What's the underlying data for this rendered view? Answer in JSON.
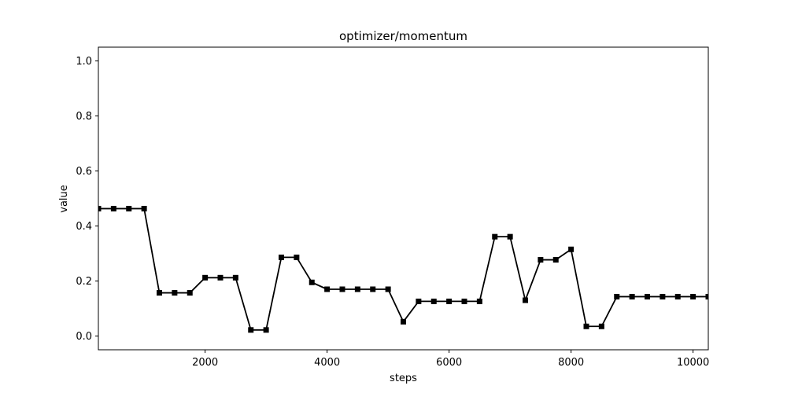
{
  "chart_data": {
    "type": "line",
    "title": "optimizer/momentum",
    "xlabel": "steps",
    "ylabel": "value",
    "xlim": [
      250,
      10250
    ],
    "ylim": [
      -0.05,
      1.05
    ],
    "xticks": [
      2000,
      4000,
      6000,
      8000,
      10000
    ],
    "xtick_labels": [
      "2000",
      "4000",
      "6000",
      "8000",
      "10000"
    ],
    "yticks": [
      0.0,
      0.2,
      0.4,
      0.6,
      0.8,
      1.0
    ],
    "ytick_labels": [
      "0.0",
      "0.2",
      "0.4",
      "0.6",
      "0.8",
      "1.0"
    ],
    "grid": false,
    "line_color": "#000000",
    "marker": "square",
    "series": [
      {
        "x": [
          250,
          500,
          750,
          1000,
          1250,
          1500,
          1750,
          2000,
          2250,
          2500,
          2750,
          3000,
          3250,
          3500,
          3750,
          4000,
          4250,
          4500,
          4750,
          5000,
          5250,
          5500,
          5750,
          6000,
          6250,
          6500,
          6750,
          7000,
          7250,
          7500,
          7750,
          8000,
          8250,
          8500,
          8750,
          9000,
          9250,
          9500,
          9750,
          10000,
          10250
        ],
        "values": [
          0.463,
          0.463,
          0.463,
          0.463,
          0.157,
          0.157,
          0.157,
          0.212,
          0.212,
          0.212,
          0.022,
          0.022,
          0.286,
          0.286,
          0.195,
          0.17,
          0.17,
          0.17,
          0.17,
          0.17,
          0.052,
          0.126,
          0.126,
          0.126,
          0.126,
          0.126,
          0.361,
          0.361,
          0.13,
          0.277,
          0.277,
          0.315,
          0.035,
          0.035,
          0.143,
          0.143,
          0.143,
          0.143,
          0.143,
          0.143,
          0.143
        ]
      }
    ]
  }
}
